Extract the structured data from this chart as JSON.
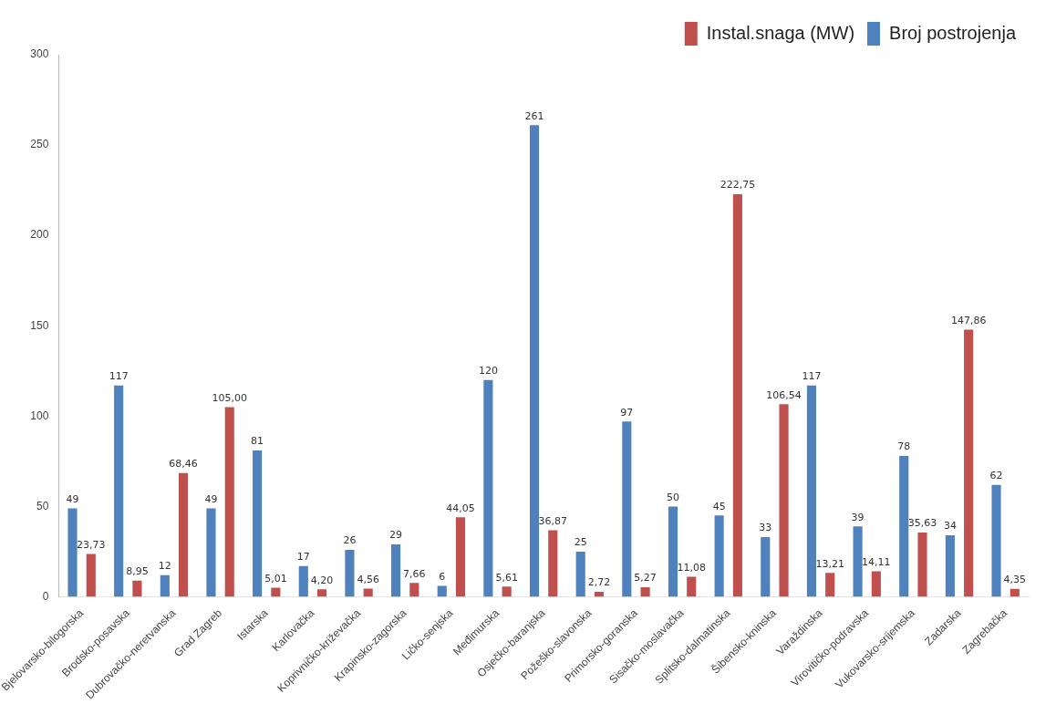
{
  "chart_data": {
    "type": "bar",
    "categories": [
      "Bjelovarsko-bilogorska",
      "Brodsko-posavska",
      "Dubrovačko-neretvanska",
      "Grad Zagreb",
      "Istarska",
      "Karlovačka",
      "Koprivničko-križevačka",
      "Krapinsko-zagorska",
      "Ličko-senjska",
      "Međimurska",
      "Osječko-baranjska",
      "Požeško-slavonska",
      "Primorsko-goranska",
      "Sisačko-moslavačka",
      "Splitsko-dalmatinska",
      "Šibensko-kninska",
      "Varaždinska",
      "Virovitičko-podravska",
      "Vukovarsko-srijemska",
      "Zadarska",
      "Zagrebačka"
    ],
    "series": [
      {
        "name": "Broj postrojenja",
        "color": "#4f81bd",
        "values": [
          49,
          117,
          12,
          49,
          81,
          17,
          26,
          29,
          6,
          120,
          261,
          25,
          97,
          50,
          45,
          33,
          117,
          39,
          78,
          34,
          62
        ],
        "value_labels": [
          "49",
          "117",
          "12",
          "49",
          "81",
          "17",
          "26",
          "29",
          "6",
          "120",
          "261",
          "25",
          "97",
          "50",
          "45",
          "33",
          "117",
          "39",
          "78",
          "34",
          "62"
        ]
      },
      {
        "name": "Instal.snaga (MW)",
        "color": "#c0504d",
        "values": [
          23.73,
          8.95,
          68.46,
          105.0,
          5.01,
          4.2,
          4.56,
          7.66,
          44.05,
          5.61,
          36.87,
          2.72,
          5.27,
          11.08,
          222.75,
          106.54,
          13.21,
          14.11,
          35.63,
          147.86,
          4.35
        ],
        "value_labels": [
          "23,73",
          "8,95",
          "68,46",
          "105,00",
          "5,01",
          "4,20",
          "4,56",
          "7,66",
          "44,05",
          "5,61",
          "36,87",
          "2,72",
          "5,27",
          "11,08",
          "222,75",
          "106,54",
          "13,21",
          "14,11",
          "35,63",
          "147,86",
          "4,35"
        ]
      }
    ],
    "ylim": [
      0,
      300
    ],
    "yticks": [
      0,
      50,
      100,
      150,
      200,
      250,
      300
    ],
    "grid": false,
    "legend": "top right"
  }
}
